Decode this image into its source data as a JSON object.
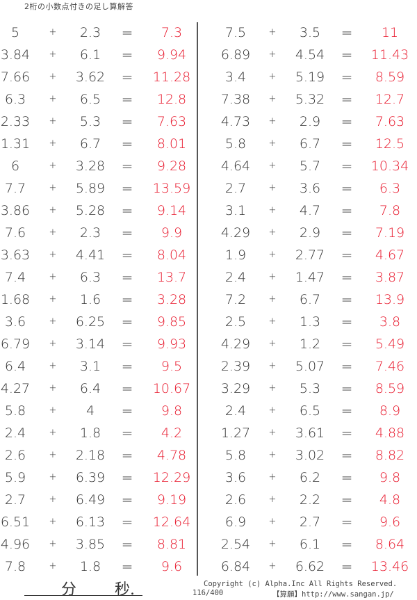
{
  "title": "2桁の小数点付きの足し算解答",
  "plus": "+",
  "equals": "=",
  "colors": {
    "answer": "#e8182c",
    "text": "#333333"
  },
  "left": [
    [
      "5",
      "2.3",
      "7.3"
    ],
    [
      "3.84",
      "6.1",
      "9.94"
    ],
    [
      "7.66",
      "3.62",
      "11.28"
    ],
    [
      "6.3",
      "6.5",
      "12.8"
    ],
    [
      "2.33",
      "5.3",
      "7.63"
    ],
    [
      "1.31",
      "6.7",
      "8.01"
    ],
    [
      "6",
      "3.28",
      "9.28"
    ],
    [
      "7.7",
      "5.89",
      "13.59"
    ],
    [
      "3.86",
      "5.28",
      "9.14"
    ],
    [
      "7.6",
      "2.3",
      "9.9"
    ],
    [
      "3.63",
      "4.41",
      "8.04"
    ],
    [
      "7.4",
      "6.3",
      "13.7"
    ],
    [
      "1.68",
      "1.6",
      "3.28"
    ],
    [
      "3.6",
      "6.25",
      "9.85"
    ],
    [
      "6.79",
      "3.14",
      "9.93"
    ],
    [
      "6.4",
      "3.1",
      "9.5"
    ],
    [
      "4.27",
      "6.4",
      "10.67"
    ],
    [
      "5.8",
      "4",
      "9.8"
    ],
    [
      "2.4",
      "1.8",
      "4.2"
    ],
    [
      "2.6",
      "2.18",
      "4.78"
    ],
    [
      "5.9",
      "6.39",
      "12.29"
    ],
    [
      "2.7",
      "6.49",
      "9.19"
    ],
    [
      "6.51",
      "6.13",
      "12.64"
    ],
    [
      "4.96",
      "3.85",
      "8.81"
    ],
    [
      "7.8",
      "1.8",
      "9.6"
    ]
  ],
  "right": [
    [
      "7.5",
      "3.5",
      "11"
    ],
    [
      "6.89",
      "4.54",
      "11.43"
    ],
    [
      "3.4",
      "5.19",
      "8.59"
    ],
    [
      "7.38",
      "5.32",
      "12.7"
    ],
    [
      "4.73",
      "2.9",
      "7.63"
    ],
    [
      "5.8",
      "6.7",
      "12.5"
    ],
    [
      "4.64",
      "5.7",
      "10.34"
    ],
    [
      "2.7",
      "3.6",
      "6.3"
    ],
    [
      "3.1",
      "4.7",
      "7.8"
    ],
    [
      "4.29",
      "2.9",
      "7.19"
    ],
    [
      "1.9",
      "2.77",
      "4.67"
    ],
    [
      "2.4",
      "1.47",
      "3.87"
    ],
    [
      "7.2",
      "6.7",
      "13.9"
    ],
    [
      "2.5",
      "1.3",
      "3.8"
    ],
    [
      "4.29",
      "1.2",
      "5.49"
    ],
    [
      "2.39",
      "5.07",
      "7.46"
    ],
    [
      "3.29",
      "5.3",
      "8.59"
    ],
    [
      "2.4",
      "6.5",
      "8.9"
    ],
    [
      "1.27",
      "3.61",
      "4.88"
    ],
    [
      "5.8",
      "3.02",
      "8.82"
    ],
    [
      "3.6",
      "6.2",
      "9.8"
    ],
    [
      "2.6",
      "2.2",
      "4.8"
    ],
    [
      "6.9",
      "2.7",
      "9.6"
    ],
    [
      "2.54",
      "6.1",
      "8.64"
    ],
    [
      "6.84",
      "6.62",
      "13.46"
    ]
  ],
  "footer": {
    "minutes": "分",
    "seconds": "秒.",
    "copyright": "Copyright (c)  Alpha.Inc All Rights Reserved.",
    "page": "116/400",
    "site": "【算願】http://www.sangan.jp/"
  }
}
